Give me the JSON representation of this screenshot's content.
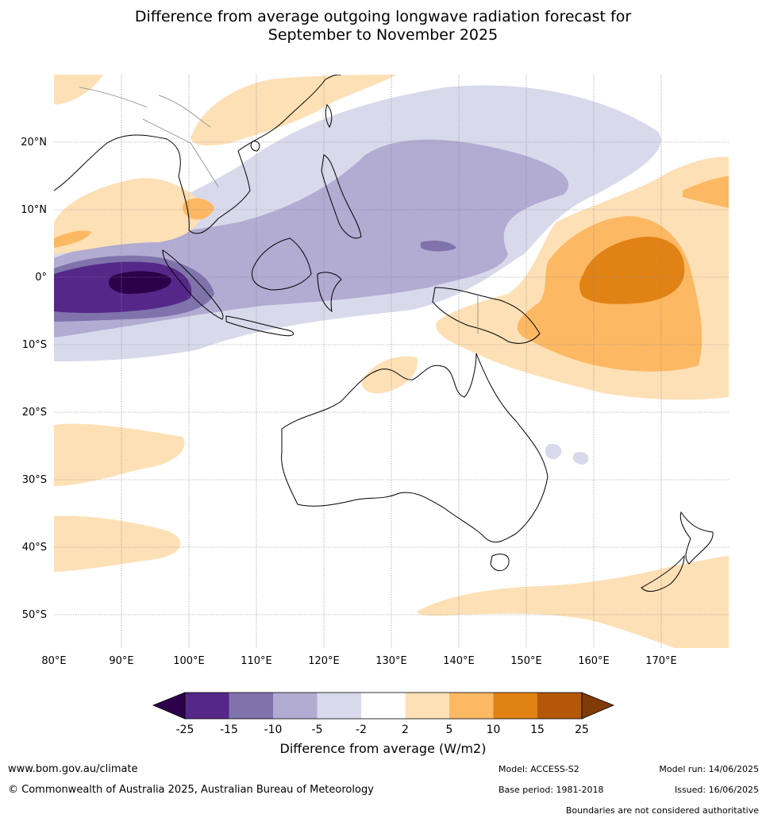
{
  "title": {
    "line1": "Difference from average outgoing longwave radiation forecast for",
    "line2": "September to November 2025"
  },
  "map": {
    "lon_range": [
      80,
      180
    ],
    "lat_range": [
      -55,
      30
    ],
    "lon_ticks": [
      "80°E",
      "90°E",
      "100°E",
      "110°E",
      "120°E",
      "130°E",
      "140°E",
      "150°E",
      "160°E",
      "170°E"
    ],
    "lat_ticks": [
      "20°N",
      "10°N",
      "0°",
      "10°S",
      "20°S",
      "30°S",
      "40°S",
      "50°S"
    ],
    "grid": true,
    "coastline_color": "#000000",
    "boundary_color": "#808080"
  },
  "colorbar": {
    "title": "Difference from average (W/m2)",
    "tick_labels": [
      "-25",
      "-15",
      "-10",
      "-5",
      "-2",
      "2",
      "5",
      "10",
      "15",
      "25"
    ],
    "colors": [
      "#2d004b",
      "#542788",
      "#8073ac",
      "#b2abd2",
      "#d8daeb",
      "#ffffff",
      "#fee0b6",
      "#fdb863",
      "#e08214",
      "#b35806",
      "#7f3b08"
    ]
  },
  "footer": {
    "website": "www.bom.gov.au/climate",
    "copyright": "© Commonwealth of Australia 2025, Australian Bureau of Meteorology",
    "model": "Model: ACCESS-S2",
    "base_period": "Base period: 1981-2018",
    "model_run": "Model run: 14/06/2025",
    "issued": "Issued: 16/06/2025",
    "disclaimer": "Boundaries are not considered authoritative"
  }
}
